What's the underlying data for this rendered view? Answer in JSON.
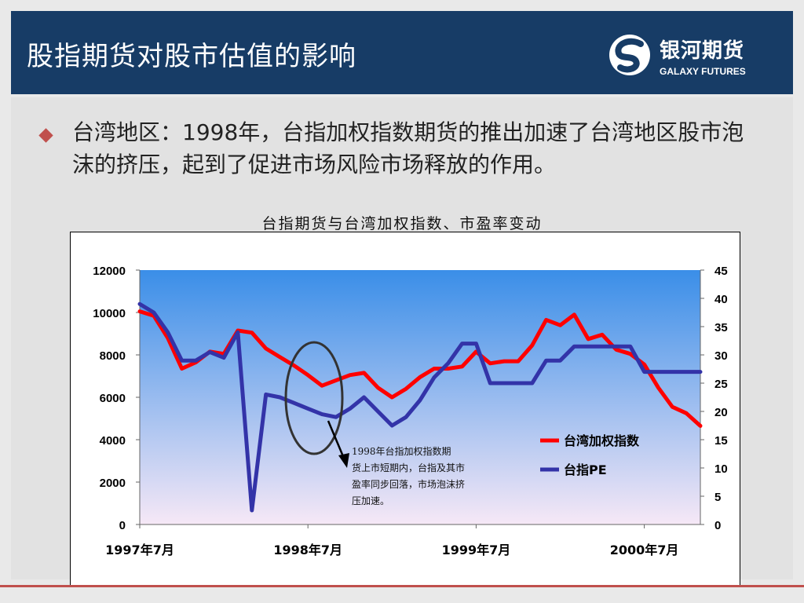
{
  "header": {
    "title": "股指期货对股市估值的影响",
    "logo_cn": "银河期货",
    "logo_en": "GALAXY FUTURES"
  },
  "content": {
    "bullet_text": "台湾地区：1998年，台指加权指数期货的推出加速了台湾地区股市泡沫的挤压，起到了促进市场风险市场释放的作用。"
  },
  "chart_data": {
    "type": "line",
    "title": "台指期货与台湾加权指数、市盈率变动",
    "x_tick_labels": [
      "1997年7月",
      "1998年7月",
      "1999年7月",
      "2000年7月"
    ],
    "x_months_range": [
      "1997-07",
      "2000-10"
    ],
    "y_left": {
      "ylim": [
        0,
        12000
      ],
      "ticks": [
        "0",
        "2000",
        "4000",
        "6000",
        "8000",
        "10000",
        "12000"
      ]
    },
    "y_right": {
      "ylim": [
        0,
        45
      ],
      "ticks": [
        "0",
        "5",
        "10",
        "15",
        "20",
        "25",
        "30",
        "35",
        "40",
        "45"
      ]
    },
    "grid": false,
    "legend_position": "bottom-right inside plot",
    "series": [
      {
        "name": "台湾加权指数",
        "axis": "left",
        "color": "#ff0000",
        "values": [
          10050,
          9850,
          8800,
          7350,
          7650,
          8150,
          8050,
          9150,
          9050,
          8300,
          7900,
          7500,
          7050,
          6550,
          6800,
          7050,
          7150,
          6450,
          6000,
          6400,
          6950,
          7350,
          7350,
          7450,
          8150,
          7600,
          7700,
          7700,
          8450,
          9650,
          9400,
          9900,
          8750,
          8950,
          8250,
          8050,
          7550,
          6450,
          5550,
          5250,
          4650
        ]
      },
      {
        "name": "台指PE",
        "axis": "right",
        "color": "#3333a8",
        "values": [
          39,
          37.5,
          34,
          29,
          29,
          30.5,
          29.5,
          34,
          2.5,
          23,
          22.5,
          21.5,
          20.5,
          19.5,
          19,
          20.5,
          22.5,
          20,
          17.5,
          19,
          22,
          26,
          28.5,
          32,
          32,
          25,
          25,
          25,
          25,
          29,
          29,
          31.5,
          31.5,
          31.5,
          31.5,
          31.5,
          27,
          27,
          27,
          27,
          27
        ]
      }
    ],
    "annotation": "1998年台指加权指数期货上市短期内，台指及其市盈率同步回落，市场泡沫挤压加速。"
  },
  "colors": {
    "header_bg": "#173c66",
    "accent": "#c0504d",
    "plot_gradient_top": "#3a8ee8",
    "plot_gradient_bottom": "#f6e8f6"
  }
}
